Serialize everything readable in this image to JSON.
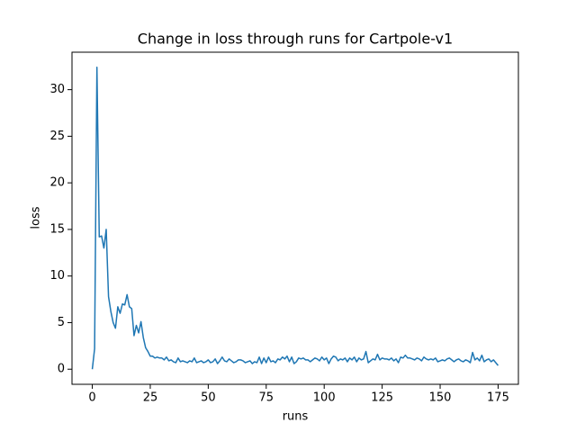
{
  "chart_data": {
    "type": "line",
    "title": "Change in loss through runs for Cartpole-v1",
    "x_label": "runs",
    "y_label": "loss",
    "color": "#1f77b4",
    "x": [
      0,
      1,
      2,
      3,
      4,
      5,
      6,
      7,
      8,
      9,
      10,
      11,
      12,
      13,
      14,
      15,
      16,
      17,
      18,
      19,
      20,
      21,
      22,
      23,
      24,
      25,
      26,
      27,
      28,
      29,
      30,
      31,
      32,
      33,
      34,
      35,
      36,
      37,
      38,
      39,
      40,
      41,
      42,
      43,
      44,
      45,
      46,
      47,
      48,
      49,
      50,
      51,
      52,
      53,
      54,
      55,
      56,
      57,
      58,
      59,
      60,
      61,
      62,
      63,
      64,
      65,
      66,
      67,
      68,
      69,
      70,
      71,
      72,
      73,
      74,
      75,
      76,
      77,
      78,
      79,
      80,
      81,
      82,
      83,
      84,
      85,
      86,
      87,
      88,
      89,
      90,
      91,
      92,
      93,
      94,
      95,
      96,
      97,
      98,
      99,
      100,
      101,
      102,
      103,
      104,
      105,
      106,
      107,
      108,
      109,
      110,
      111,
      112,
      113,
      114,
      115,
      116,
      117,
      118,
      119,
      120,
      121,
      122,
      123,
      124,
      125,
      126,
      127,
      128,
      129,
      130,
      131,
      132,
      133,
      134,
      135,
      136,
      137,
      138,
      139,
      140,
      141,
      142,
      143,
      144,
      145,
      146,
      147,
      148,
      149,
      150,
      151,
      152,
      153,
      154,
      155,
      156,
      157,
      158,
      159,
      160,
      161,
      162,
      163,
      164,
      165,
      166,
      167,
      168,
      169,
      170,
      171,
      172,
      173,
      174,
      175
    ],
    "values": [
      0,
      2.2,
      32.4,
      14.2,
      14.3,
      13.0,
      15.0,
      7.8,
      6.2,
      5.0,
      4.4,
      6.7,
      6.0,
      7.0,
      6.9,
      8.0,
      6.7,
      6.5,
      3.6,
      4.7,
      3.9,
      5.1,
      3.4,
      2.3,
      1.9,
      1.4,
      1.4,
      1.2,
      1.3,
      1.2,
      1.2,
      1.0,
      1.3,
      0.9,
      1.0,
      0.8,
      0.7,
      1.2,
      0.8,
      0.9,
      0.8,
      0.7,
      0.9,
      0.8,
      1.2,
      0.7,
      0.8,
      0.9,
      0.7,
      0.8,
      1.0,
      0.7,
      0.8,
      1.1,
      0.6,
      0.9,
      1.3,
      0.9,
      0.8,
      1.1,
      0.9,
      0.7,
      0.8,
      1.0,
      1.0,
      0.9,
      0.7,
      0.8,
      0.9,
      0.6,
      0.8,
      0.7,
      1.3,
      0.6,
      1.2,
      0.7,
      1.3,
      0.8,
      0.9,
      0.7,
      1.1,
      1.0,
      1.3,
      1.1,
      1.4,
      0.8,
      1.3,
      0.6,
      0.8,
      1.2,
      1.1,
      1.2,
      1.0,
      1.0,
      0.8,
      1.0,
      1.2,
      1.1,
      0.9,
      1.3,
      1.0,
      1.2,
      0.6,
      1.1,
      1.4,
      1.3,
      0.9,
      1.1,
      1.0,
      1.2,
      0.8,
      1.2,
      1.0,
      1.3,
      0.8,
      1.2,
      1.0,
      1.1,
      1.9,
      0.7,
      0.9,
      1.1,
      1.0,
      1.6,
      1.0,
      1.2,
      1.1,
      1.1,
      1.0,
      1.2,
      0.9,
      1.1,
      0.7,
      1.3,
      1.2,
      1.5,
      1.2,
      1.2,
      1.1,
      1.0,
      1.2,
      1.1,
      0.9,
      1.3,
      1.1,
      1.0,
      1.1,
      1.0,
      1.2,
      0.8,
      0.9,
      1.0,
      0.9,
      1.1,
      1.2,
      1.0,
      0.8,
      1.0,
      1.1,
      0.9,
      0.8,
      1.0,
      0.9,
      0.7,
      1.8,
      1.0,
      1.2,
      0.9,
      1.5,
      0.8,
      1.0,
      1.1,
      0.8,
      1.0,
      0.7,
      0.4
    ],
    "xlim": [
      -8.75,
      183.75
    ],
    "ylim": [
      -1.62,
      34.02
    ],
    "xticks": [
      0,
      25,
      50,
      75,
      100,
      125,
      150,
      175
    ],
    "yticks": [
      0,
      5,
      10,
      15,
      20,
      25,
      30
    ]
  }
}
